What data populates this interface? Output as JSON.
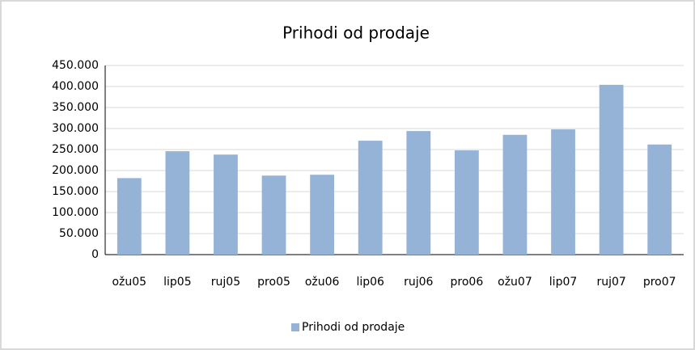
{
  "chart_data": {
    "type": "bar",
    "title": "Prihodi od prodaje",
    "categories": [
      "ožu05",
      "lip05",
      "ruj05",
      "pro05",
      "ožu06",
      "lip06",
      "ruj06",
      "pro06",
      "ožu07",
      "lip07",
      "ruj07",
      "pro07"
    ],
    "series": [
      {
        "name": "Prihodi od prodaje",
        "color": "#95b3d7",
        "values": [
          182000,
          246000,
          238000,
          188000,
          190000,
          271000,
          294000,
          248000,
          285000,
          298000,
          404000,
          262000
        ]
      }
    ],
    "ylim": [
      0,
      450000
    ],
    "yticks": [
      0,
      {
        "value": 50000,
        "label": "50.000"
      },
      {
        "value": 100000,
        "label": "100.000"
      },
      {
        "value": 150000,
        "label": "150.000"
      },
      {
        "value": 200000,
        "label": "200.000"
      },
      {
        "value": 250000,
        "label": "250.000"
      },
      {
        "value": 300000,
        "label": "300.000"
      },
      {
        "value": 350000,
        "label": "350.000"
      },
      {
        "value": 400000,
        "label": "400.000"
      },
      {
        "value": 450000,
        "label": "450.000"
      }
    ],
    "grid": true,
    "legend": "bottom"
  }
}
